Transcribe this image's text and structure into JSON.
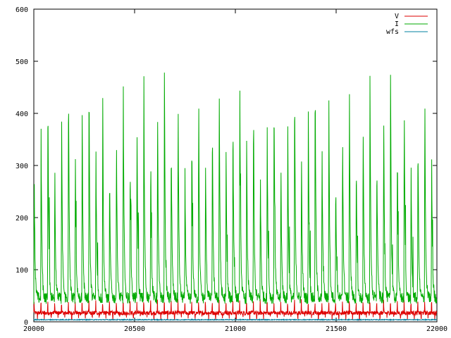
{
  "chart_data": {
    "type": "line",
    "title": "",
    "xlabel": "",
    "ylabel": "",
    "xlim": [
      20000,
      22000
    ],
    "ylim": [
      0,
      600
    ],
    "x_ticks": [
      20000,
      20500,
      21000,
      21500,
      22000
    ],
    "y_ticks": [
      0,
      100,
      200,
      300,
      400,
      500,
      600
    ],
    "grid": false,
    "legend_position": "top-right",
    "series": [
      {
        "name": "V",
        "color": "#dd0000",
        "pattern": "noisy baseline around 15-20 with periodic spikes to ~40",
        "baseline": 17,
        "peak": 40,
        "period": 34
      },
      {
        "name": "I",
        "color": "#00aa00",
        "pattern": "periodic sharp spikes from baseline ~40-60 up to ~480-510 with decaying tails",
        "baseline": 45,
        "peak": 490,
        "period": 34
      },
      {
        "name": "wfs",
        "color": "#0080a0",
        "pattern": "nearly flat line near 3-5",
        "baseline": 4,
        "peak": 5
      }
    ]
  }
}
